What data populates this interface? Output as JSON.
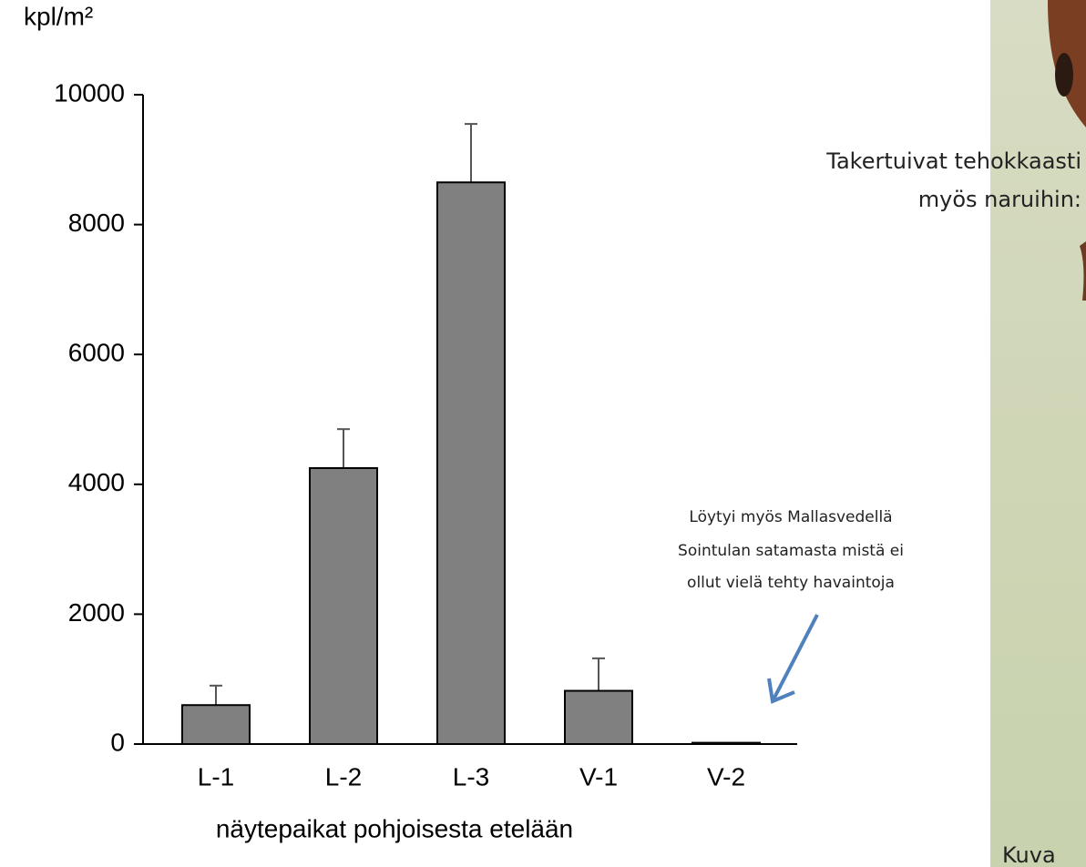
{
  "chart_data": {
    "type": "bar",
    "ylabel": "kpl/m²",
    "xlabel": "näytepaikat pohjoisesta etelään",
    "categories": [
      "L-1",
      "L-2",
      "L-3",
      "V-1",
      "V-2"
    ],
    "values": [
      600,
      4250,
      8650,
      820,
      20
    ],
    "errors": [
      300,
      600,
      900,
      500,
      null
    ],
    "color": "#808080",
    "ylim": [
      0,
      10000
    ],
    "yticks": [
      0,
      2000,
      4000,
      6000,
      8000,
      10000
    ],
    "annotation": [
      "Löytyi myös Mallasvedellä",
      "Sointulan satamasta mistä ei",
      "ollut vielä tehty havaintoja"
    ]
  },
  "side_text": [
    "Takertuivat tehokkaasti",
    "myös naruihin:"
  ],
  "photo_caption": "Kuva"
}
